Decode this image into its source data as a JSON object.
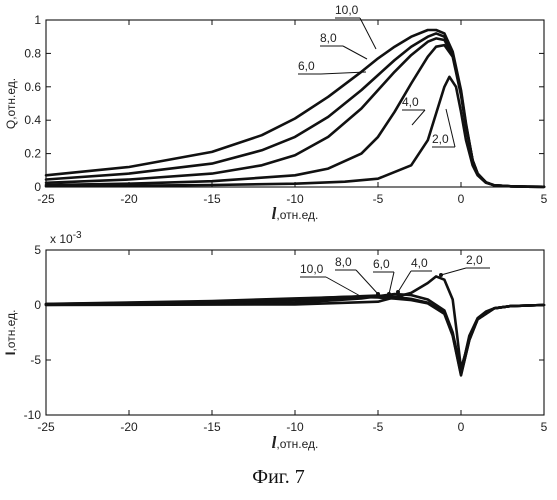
{
  "caption": "Фиг. 7",
  "chart_data": [
    {
      "type": "line",
      "xlabel_italic": "l",
      "xlabel_rest": ",отн.ед.",
      "ylabel": "Q,отн.ед.",
      "xlim": [
        -25,
        5
      ],
      "ylim": [
        0,
        1
      ],
      "xticks": [
        -25,
        -20,
        -15,
        -10,
        -5,
        0,
        5
      ],
      "yticks": [
        0,
        0.2,
        0.4,
        0.6,
        0.8,
        1
      ],
      "ytick_labels": [
        "0",
        "0.2",
        "0.4",
        "0.6",
        "0.8",
        "1"
      ],
      "grid": false,
      "series": [
        {
          "name": "2,0",
          "x": [
            -25,
            -20,
            -15,
            -10,
            -7,
            -5,
            -3,
            -2,
            -1.5,
            -1,
            -0.7,
            -0.3,
            0,
            0.3,
            0.7,
            1,
            1.5,
            2,
            3,
            4,
            5
          ],
          "y": [
            0.005,
            0.008,
            0.012,
            0.02,
            0.032,
            0.05,
            0.13,
            0.28,
            0.44,
            0.6,
            0.66,
            0.6,
            0.45,
            0.28,
            0.13,
            0.07,
            0.025,
            0.01,
            0.004,
            0.002,
            0.001
          ]
        },
        {
          "name": "4,0",
          "x": [
            -25,
            -20,
            -15,
            -10,
            -8,
            -6,
            -5,
            -4,
            -3,
            -2,
            -1.5,
            -1,
            -0.5,
            0,
            0.3,
            0.7,
            1,
            1.5,
            2,
            3,
            4,
            5
          ],
          "y": [
            0.012,
            0.02,
            0.035,
            0.07,
            0.11,
            0.2,
            0.3,
            0.45,
            0.62,
            0.78,
            0.84,
            0.85,
            0.78,
            0.55,
            0.36,
            0.16,
            0.08,
            0.028,
            0.01,
            0.004,
            0.002,
            0.001
          ]
        },
        {
          "name": "6,0",
          "x": [
            -25,
            -20,
            -15,
            -12,
            -10,
            -8,
            -6,
            -5,
            -4,
            -3,
            -2,
            -1.5,
            -1,
            -0.5,
            0,
            0.3,
            0.7,
            1,
            1.5,
            2,
            3,
            4,
            5
          ],
          "y": [
            0.025,
            0.045,
            0.08,
            0.13,
            0.19,
            0.3,
            0.47,
            0.58,
            0.69,
            0.79,
            0.87,
            0.89,
            0.88,
            0.79,
            0.56,
            0.37,
            0.16,
            0.08,
            0.028,
            0.01,
            0.004,
            0.002,
            0.001
          ]
        },
        {
          "name": "8,0",
          "x": [
            -25,
            -20,
            -15,
            -12,
            -10,
            -8,
            -6,
            -5,
            -4,
            -3,
            -2,
            -1.5,
            -1,
            -0.5,
            0,
            0.3,
            0.7,
            1,
            1.5,
            2,
            3,
            4,
            5
          ],
          "y": [
            0.045,
            0.08,
            0.14,
            0.22,
            0.3,
            0.42,
            0.58,
            0.67,
            0.76,
            0.84,
            0.9,
            0.92,
            0.9,
            0.8,
            0.57,
            0.37,
            0.16,
            0.08,
            0.028,
            0.01,
            0.004,
            0.002,
            0.001
          ]
        },
        {
          "name": "10,0",
          "x": [
            -25,
            -20,
            -15,
            -12,
            -10,
            -8,
            -6,
            -5,
            -4,
            -3,
            -2,
            -1.5,
            -1,
            -0.5,
            0,
            0.3,
            0.7,
            1,
            1.5,
            2,
            3,
            4,
            5
          ],
          "y": [
            0.07,
            0.12,
            0.21,
            0.31,
            0.41,
            0.54,
            0.69,
            0.77,
            0.84,
            0.9,
            0.94,
            0.94,
            0.92,
            0.81,
            0.58,
            0.38,
            0.16,
            0.08,
            0.028,
            0.01,
            0.004,
            0.002,
            0.001
          ]
        }
      ]
    },
    {
      "type": "line",
      "xlabel_italic": "l",
      "xlabel_rest": ",отн.ед.",
      "ylabel_italic": "I",
      "ylabel_rest": ",отн.ед.",
      "scale_label": "x 10",
      "scale_exponent": "-3",
      "xlim": [
        -25,
        5
      ],
      "ylim": [
        -10,
        5
      ],
      "xticks": [
        -25,
        -20,
        -15,
        -10,
        -5,
        0,
        5
      ],
      "yticks": [
        -10,
        -5,
        0,
        5
      ],
      "ytick_labels": [
        "-10",
        "-5",
        "0",
        "5"
      ],
      "grid": false,
      "series": [
        {
          "name": "2,0",
          "x": [
            -25,
            -10,
            -5,
            -3,
            -2,
            -1.5,
            -1,
            -0.5,
            -0.25,
            0,
            0.25,
            0.5,
            1,
            1.5,
            2,
            3,
            5
          ],
          "y": [
            0,
            0.05,
            0.3,
            1.1,
            2.0,
            2.6,
            2.3,
            0.5,
            -2.5,
            -5.8,
            -4.5,
            -2.8,
            -1.2,
            -0.6,
            -0.3,
            -0.1,
            0
          ]
        },
        {
          "name": "4,0",
          "x": [
            -25,
            -10,
            -6,
            -4,
            -3,
            -2,
            -1,
            -0.5,
            0,
            0.5,
            1,
            2,
            3,
            5
          ],
          "y": [
            0.02,
            0.2,
            0.6,
            1.0,
            0.9,
            0.5,
            -0.5,
            -2.5,
            -6.0,
            -3.0,
            -1.3,
            -0.3,
            -0.1,
            0
          ]
        },
        {
          "name": "6,0",
          "x": [
            -25,
            -15,
            -10,
            -6,
            -5,
            -4,
            -3,
            -2,
            -1,
            -0.5,
            0,
            0.5,
            1,
            2,
            3,
            5
          ],
          "y": [
            0.05,
            0.2,
            0.4,
            0.8,
            0.85,
            0.75,
            0.55,
            0.2,
            -0.7,
            -2.6,
            -6.2,
            -3.1,
            -1.3,
            -0.3,
            -0.1,
            0
          ]
        },
        {
          "name": "8,0",
          "x": [
            -25,
            -15,
            -10,
            -7,
            -5,
            -4,
            -3,
            -2,
            -1,
            -0.5,
            0,
            0.5,
            1,
            2,
            3,
            5
          ],
          "y": [
            0.08,
            0.3,
            0.55,
            0.75,
            0.8,
            0.7,
            0.5,
            0.2,
            -0.8,
            -2.7,
            -6.3,
            -3.2,
            -1.3,
            -0.3,
            -0.1,
            0
          ]
        },
        {
          "name": "10,0",
          "x": [
            -25,
            -15,
            -10,
            -7,
            -6,
            -5,
            -4,
            -3,
            -2,
            -1,
            -0.5,
            0,
            0.5,
            1,
            2,
            3,
            5
          ],
          "y": [
            0.1,
            0.35,
            0.6,
            0.72,
            0.72,
            0.68,
            0.58,
            0.45,
            0.15,
            -0.8,
            -2.8,
            -6.4,
            -3.2,
            -1.3,
            -0.3,
            -0.1,
            0
          ]
        }
      ]
    }
  ]
}
